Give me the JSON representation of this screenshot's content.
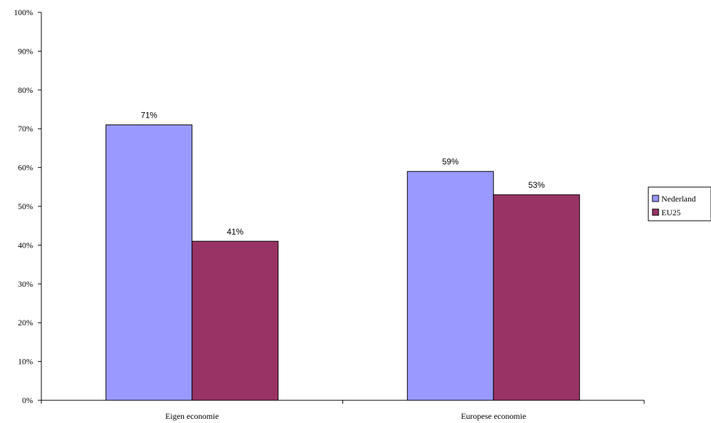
{
  "chart_data": {
    "type": "bar",
    "title": "",
    "xlabel": "",
    "ylabel": "",
    "categories": [
      "Eigen economie",
      "Europese economie"
    ],
    "series": [
      {
        "name": "Nederland",
        "values": [
          71,
          59
        ],
        "color": "#9999ff"
      },
      {
        "name": "EU25",
        "values": [
          41,
          53
        ],
        "color": "#993366"
      }
    ],
    "ylim": [
      0,
      100
    ],
    "y_ticks": [
      0,
      10,
      20,
      30,
      40,
      50,
      60,
      70,
      80,
      90,
      100
    ],
    "y_tick_format": "%",
    "grid": false,
    "legend_position": "right",
    "data_labels": true
  }
}
